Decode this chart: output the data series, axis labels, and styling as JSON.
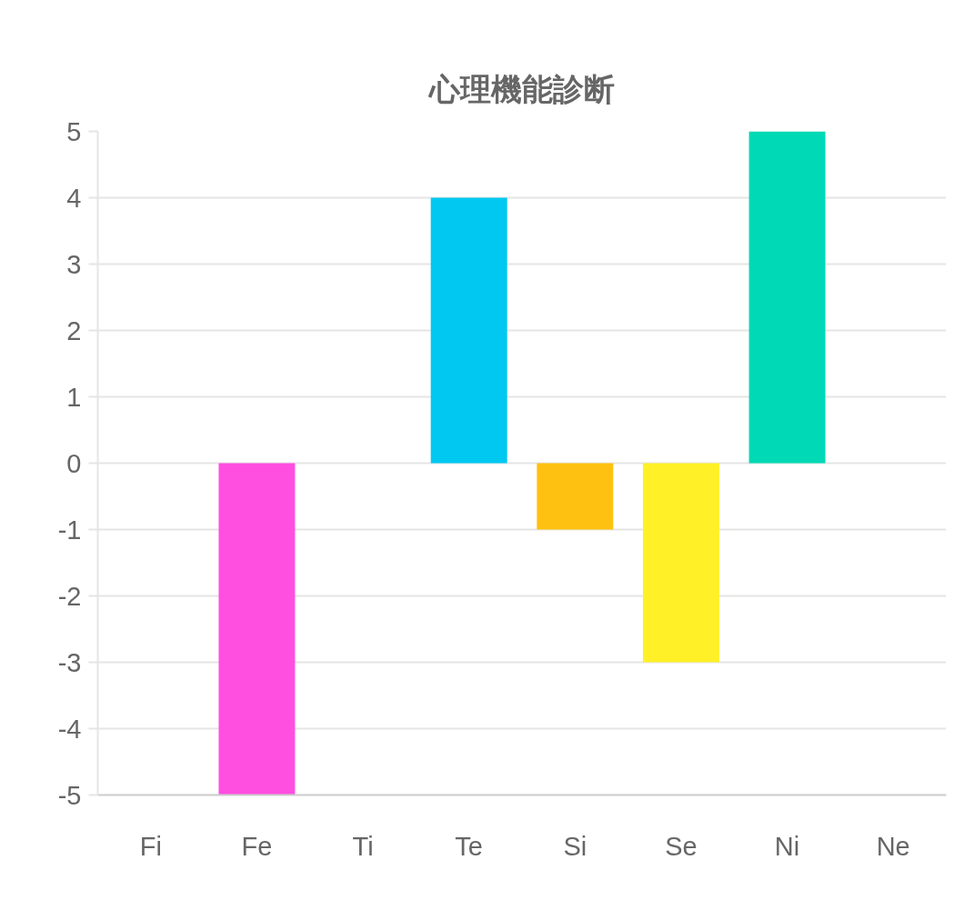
{
  "chart_data": {
    "type": "bar",
    "title": "心理機能診断",
    "categories": [
      "Fi",
      "Fe",
      "Ti",
      "Te",
      "Si",
      "Se",
      "Ni",
      "Ne"
    ],
    "values": [
      0,
      -5,
      0,
      4,
      -1,
      -3,
      5,
      0
    ],
    "colors": [
      null,
      "#ff4fe0",
      null,
      "#00c8f0",
      "#ffc111",
      "#fff027",
      "#00d9b5",
      null
    ],
    "ylim": [
      -5,
      5
    ],
    "yticks": [
      -5,
      -4,
      -3,
      -2,
      -1,
      0,
      1,
      2,
      3,
      4,
      5
    ],
    "grid": "y"
  }
}
